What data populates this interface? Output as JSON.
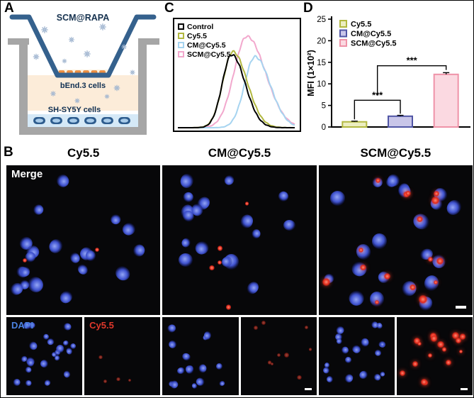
{
  "panels": {
    "a": "A",
    "b": "B",
    "c": "C",
    "d": "D"
  },
  "panel_a": {
    "title": "SCM@RAPA",
    "bend3_label": "bEnd.3 cells",
    "shsy5y_label": "SH-SY5Y cells",
    "colors": {
      "insert": "#35618d",
      "chamber_gray": "#a6a6a6",
      "medium": "#fcecd9",
      "bend3_cell": "#ef8f40",
      "bottom_layer": "#d5e9f7",
      "shsy5y_cell": "#2d5c8e",
      "particle": "#9bb1cd"
    }
  },
  "panel_b": {
    "columns": [
      "Cy5.5",
      "CM@Cy5.5",
      "SCM@Cy5.5"
    ],
    "merge_label": "Merge",
    "dapi_label": "DAPI",
    "cy55_label": "Cy5.5",
    "tiles": [
      {
        "column": "Cy5.5",
        "kind": "merge",
        "blue_cells": 20,
        "red_spots": 2,
        "bright": false,
        "seed": 11
      },
      {
        "column": "CM@Cy5.5",
        "kind": "merge",
        "blue_cells": 17,
        "red_spots": 5,
        "bright": false,
        "seed": 22
      },
      {
        "column": "SCM@Cy5.5",
        "kind": "merge",
        "blue_cells": 22,
        "red_spots": 16,
        "bright": true,
        "attach": true,
        "seed": 33
      },
      {
        "column": "Cy5.5",
        "kind": "dapi",
        "blue_cells": 22,
        "red_spots": 0,
        "seed": 41
      },
      {
        "column": "Cy5.5",
        "kind": "cy55",
        "blue_cells": 0,
        "red_spots": 4,
        "dim": true,
        "seed": 42
      },
      {
        "column": "CM@Cy5.5",
        "kind": "dapi",
        "blue_cells": 15,
        "red_spots": 0,
        "seed": 43
      },
      {
        "column": "CM@Cy5.5",
        "kind": "cy55",
        "blue_cells": 0,
        "red_spots": 9,
        "dim": true,
        "seed": 44
      },
      {
        "column": "SCM@Cy5.5",
        "kind": "dapi",
        "blue_cells": 19,
        "red_spots": 0,
        "seed": 45
      },
      {
        "column": "SCM@Cy5.5",
        "kind": "cy55",
        "blue_cells": 0,
        "red_spots": 16,
        "bright": true,
        "seed": 46
      }
    ]
  },
  "chart_data": [
    {
      "type": "line",
      "subtype": "flow-cytometry-histogram",
      "panel": "C",
      "title": "",
      "xlabel": "",
      "ylabel": "",
      "legend_position": "top-left",
      "axes_style": "closed box, no tick labels",
      "series": [
        {
          "name": "Control",
          "color": "#000000",
          "peak": 46,
          "height": 72,
          "width": 8
        },
        {
          "name": "Cy5.5",
          "color": "#b2b840",
          "peak": 47,
          "height": 75,
          "width": 8.5
        },
        {
          "name": "CM@Cy5.5",
          "color": "#a6d4f0",
          "peak": 66,
          "height": 70,
          "width": 9
        },
        {
          "name": "SCM@Cy5.5",
          "color": "#f2a8cd",
          "peak": 59,
          "height": 90,
          "width": 11
        }
      ]
    },
    {
      "type": "bar",
      "panel": "D",
      "categories": [
        "Cy5.5",
        "CM@Cy5.5",
        "SCM@Cy5.5"
      ],
      "values": [
        1.2,
        2.5,
        12.2
      ],
      "errors": [
        0.15,
        0.2,
        0.4
      ],
      "ylabel": "MFI (1×10²)",
      "ylim": [
        0,
        25
      ],
      "yticks": [
        0,
        5,
        10,
        15,
        20,
        25
      ],
      "legend_position": "top-left",
      "bar_styles": [
        {
          "fill": "#eceec0",
          "stroke": "#b2b840"
        },
        {
          "fill": "#c9c6e9",
          "stroke": "#5055a5"
        },
        {
          "fill": "#fbd9e1",
          "stroke": "#ef93a8"
        }
      ],
      "significance": [
        {
          "from": 0,
          "to": 1,
          "label": "***",
          "y": 6.2,
          "tick_from": 27,
          "tick_to": 19
        },
        {
          "from": 0.5,
          "to": 2,
          "label": "***",
          "y": 14.2,
          "tick_from": 42,
          "tick_to": 6
        }
      ]
    }
  ]
}
